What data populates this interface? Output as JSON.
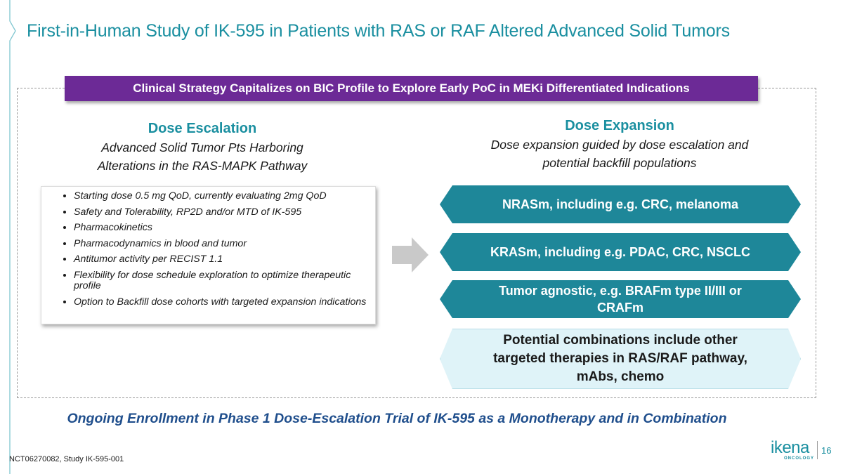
{
  "colors": {
    "teal": "#1e8799",
    "purple": "#6c2a96",
    "light_teal": "#dff3f8",
    "navy": "#1f4e8c"
  },
  "slide": {
    "title": "First-in-Human Study of IK-595 in Patients with RAS or RAF Altered Advanced Solid Tumors",
    "banner": "Clinical Strategy Capitalizes on BIC Profile to Explore Early PoC in MEKi Differentiated Indications",
    "escalation": {
      "title": "Dose Escalation",
      "subtitle_line1": "Advanced Solid Tumor Pts Harboring",
      "subtitle_line2": "Alterations in the RAS-MAPK Pathway",
      "bullets": [
        "Starting dose 0.5 mg QoD, currently evaluating 2mg QoD",
        "Safety and Tolerability, RP2D and/or MTD of IK-595",
        "Pharmacokinetics",
        "Pharmacodynamics in blood and tumor",
        "Antitumor activity per RECIST 1.1",
        "Flexibility for dose schedule exploration to optimize therapeutic profile",
        "Option to Backfill dose cohorts with targeted expansion indications"
      ]
    },
    "expansion": {
      "title": "Dose Expansion",
      "subtitle_line1": "Dose expansion guided by dose escalation and",
      "subtitle_line2": "potential backfill populations",
      "cohorts": [
        "NRASm, including e.g. CRC, melanoma",
        "KRASm, including e.g. PDAC, CRC, NSCLC",
        "Tumor agnostic, e.g. BRAFm type II/III or CRAFm"
      ],
      "combinations": "Potential combinations include other targeted therapies in RAS/RAF pathway, mAbs, chemo"
    },
    "bottom_statement": "Ongoing Enrollment in Phase 1 Dose-Escalation Trial of IK-595 as a Monotherapy and in Combination",
    "footnote": "NCT06270082, Study IK-595-001",
    "logo_text": "ikena",
    "logo_subtext": "ONCOLOGY",
    "page_number": "16"
  }
}
